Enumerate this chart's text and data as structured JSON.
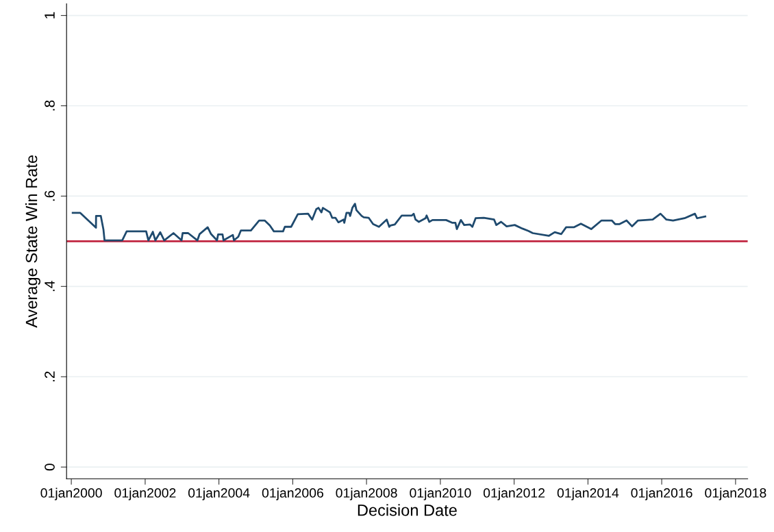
{
  "chart_data": {
    "type": "line",
    "xlabel": "Decision Date",
    "ylabel": "Average State Win Rate",
    "x": [
      "2000-01-15",
      "2000-03-28",
      "2000-09-01",
      "2000-09-02",
      "2000-10-19",
      "2000-11-14",
      "2000-11-25",
      "2001-05-19",
      "2001-07-02",
      "2002-01-11",
      "2002-02-02",
      "2002-03-18",
      "2002-04-12",
      "2002-05-30",
      "2002-07-09",
      "2002-10-08",
      "2002-12-27",
      "2003-01-07",
      "2003-03-03",
      "2003-06-02",
      "2003-06-24",
      "2003-09-12",
      "2003-10-15",
      "2003-12-13",
      "2003-12-24",
      "2004-02-06",
      "2004-02-16",
      "2004-05-18",
      "2004-05-29",
      "2004-07-11",
      "2004-08-06",
      "2004-11-13",
      "2005-02-02",
      "2005-03-29",
      "2005-05-19",
      "2005-06-28",
      "2005-09-27",
      "2005-10-15",
      "2005-12-16",
      "2006-02-20",
      "2006-06-02",
      "2006-07-12",
      "2006-08-22",
      "2006-09-12",
      "2006-10-12",
      "2006-10-26",
      "2007-01-04",
      "2007-01-26",
      "2007-02-27",
      "2007-03-29",
      "2007-05-19",
      "2007-05-26",
      "2007-06-17",
      "2007-07-12",
      "2007-07-23",
      "2007-08-14",
      "2007-09-09",
      "2007-09-23",
      "2007-11-14",
      "2007-12-05",
      "2008-01-22",
      "2008-03-06",
      "2008-05-03",
      "2008-07-19",
      "2008-08-13",
      "2008-08-24",
      "2008-10-07",
      "2008-12-15",
      "2009-03-25",
      "2009-04-12",
      "2009-04-30",
      "2009-06-02",
      "2009-08-07",
      "2009-08-18",
      "2009-09-13",
      "2009-10-15",
      "2009-12-24",
      "2010-02-27",
      "2010-04-27",
      "2010-05-30",
      "2010-06-13",
      "2010-07-23",
      "2010-08-25",
      "2010-10-23",
      "2010-11-14",
      "2010-12-16",
      "2011-03-07",
      "2011-06-17",
      "2011-07-09",
      "2011-08-25",
      "2011-10-19",
      "2012-01-07",
      "2012-03-24",
      "2012-05-21",
      "2012-07-04",
      "2012-12-09",
      "2013-02-06",
      "2013-04-12",
      "2013-05-30",
      "2013-08-14",
      "2013-10-23",
      "2014-02-02",
      "2014-05-15",
      "2014-08-25",
      "2014-09-27",
      "2014-11-10",
      "2015-01-18",
      "2015-03-14",
      "2015-05-11",
      "2015-10-04",
      "2015-12-20",
      "2016-02-16",
      "2016-04-22",
      "2016-08-14",
      "2016-11-25",
      "2016-12-16",
      "2017-03-07"
    ],
    "series": [
      {
        "color": "#1f4a6e",
        "values": [
          0.563,
          0.563,
          0.53,
          0.556,
          0.556,
          0.526,
          0.502,
          0.502,
          0.522,
          0.522,
          0.502,
          0.521,
          0.502,
          0.52,
          0.502,
          0.518,
          0.502,
          0.518,
          0.518,
          0.502,
          0.516,
          0.531,
          0.516,
          0.502,
          0.515,
          0.515,
          0.502,
          0.514,
          0.502,
          0.51,
          0.524,
          0.524,
          0.546,
          0.546,
          0.535,
          0.522,
          0.522,
          0.532,
          0.532,
          0.56,
          0.561,
          0.548,
          0.571,
          0.574,
          0.564,
          0.574,
          0.564,
          0.552,
          0.552,
          0.542,
          0.548,
          0.541,
          0.563,
          0.563,
          0.556,
          0.574,
          0.583,
          0.569,
          0.556,
          0.553,
          0.552,
          0.538,
          0.532,
          0.548,
          0.532,
          0.535,
          0.537,
          0.557,
          0.557,
          0.561,
          0.548,
          0.543,
          0.551,
          0.557,
          0.543,
          0.547,
          0.547,
          0.547,
          0.541,
          0.541,
          0.527,
          0.547,
          0.536,
          0.537,
          0.532,
          0.551,
          0.552,
          0.548,
          0.536,
          0.543,
          0.533,
          0.536,
          0.528,
          0.523,
          0.518,
          0.512,
          0.52,
          0.516,
          0.531,
          0.531,
          0.539,
          0.527,
          0.546,
          0.546,
          0.538,
          0.538,
          0.546,
          0.533,
          0.546,
          0.548,
          0.561,
          0.548,
          0.546,
          0.551,
          0.561,
          0.551,
          0.555
        ]
      }
    ],
    "xlim": [
      "1999-11-15",
      "2018-05-01"
    ],
    "xticks": [
      {
        "value": "2000-01-01",
        "label": "01jan2000"
      },
      {
        "value": "2002-01-01",
        "label": "01jan2002"
      },
      {
        "value": "2004-01-01",
        "label": "01jan2004"
      },
      {
        "value": "2006-01-01",
        "label": "01jan2006"
      },
      {
        "value": "2008-01-01",
        "label": "01jan2008"
      },
      {
        "value": "2010-01-01",
        "label": "01jan2010"
      },
      {
        "value": "2012-01-01",
        "label": "01jan2012"
      },
      {
        "value": "2014-01-01",
        "label": "01jan2014"
      },
      {
        "value": "2016-01-01",
        "label": "01jan2016"
      },
      {
        "value": "2018-01-01",
        "label": "01jan2018"
      }
    ],
    "ylim": [
      -0.026,
      1.026
    ],
    "yticks": [
      0,
      {
        "value": 0.2,
        "label": ".2"
      },
      {
        "value": 0.4,
        "label": ".4"
      },
      {
        "value": 0.6,
        "label": ".6"
      },
      {
        "value": 0.8,
        "label": ".8"
      },
      1
    ],
    "ref_lines": [
      {
        "axis": "y",
        "value": 0.5,
        "color": "#c0243f"
      }
    ],
    "grid": "y",
    "marker": "none",
    "line_style": "solid"
  }
}
